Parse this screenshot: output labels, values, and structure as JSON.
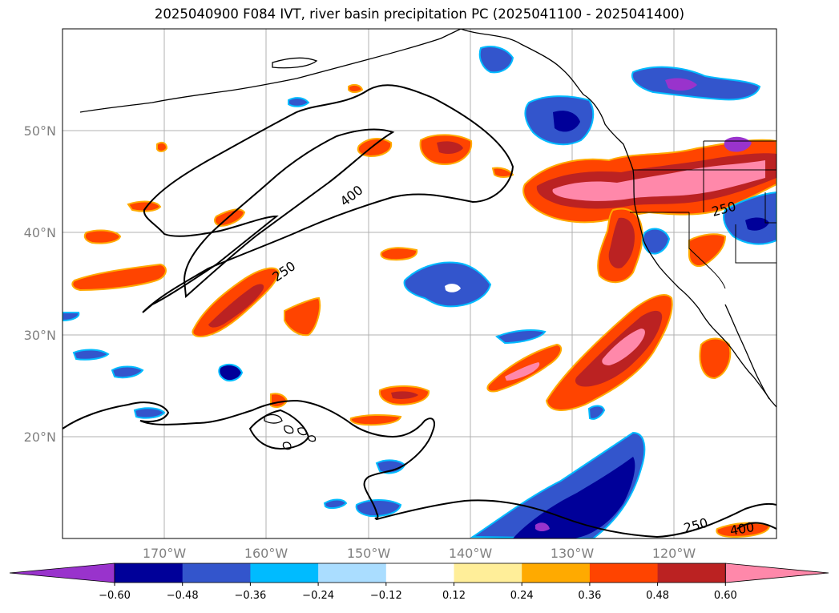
{
  "title": "2025040900 F084 IVT, river basin precipitation PC (2025041100 - 2025041400)",
  "map": {
    "lat_labels": [
      "50°N",
      "40°N",
      "30°N",
      "20°N"
    ],
    "lon_labels": [
      "170°W",
      "160°W",
      "150°W",
      "140°W",
      "130°W",
      "120°W"
    ],
    "contour_labels": [
      "400",
      "250",
      "250",
      "250",
      "400"
    ]
  },
  "colorbar": {
    "colors": [
      "#9933cc",
      "#000099",
      "#3355cc",
      "#00bbff",
      "#aaddff",
      "#ffffff",
      "#ffee99",
      "#ffaa00",
      "#ff4400",
      "#bb2222",
      "#ff88aa"
    ],
    "tick_labels": [
      "−0.60",
      "−0.48",
      "−0.36",
      "−0.24",
      "−0.12",
      "0.12",
      "0.24",
      "0.36",
      "0.48",
      "0.60"
    ]
  }
}
